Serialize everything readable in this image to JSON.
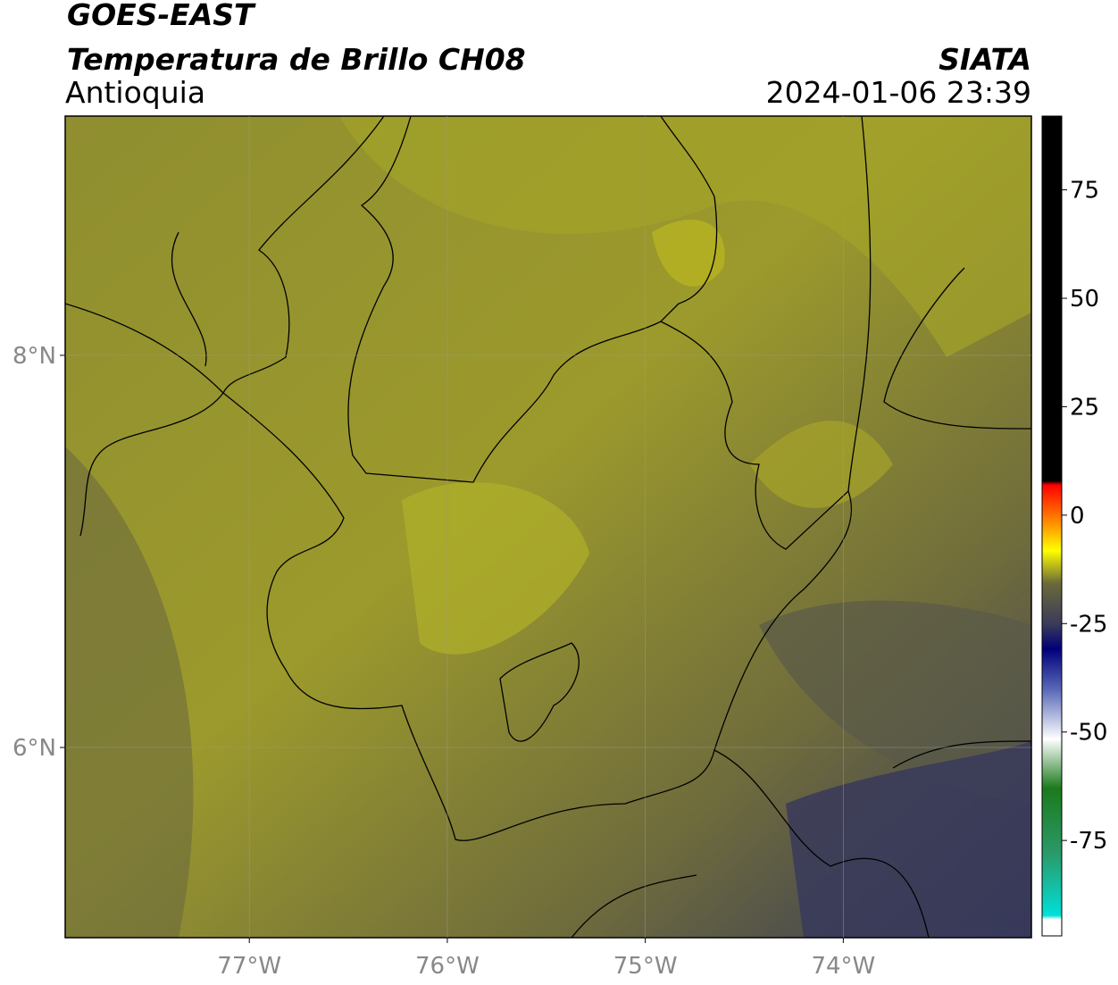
{
  "header": {
    "title": "GOES-EAST",
    "subtitle": "Temperatura de Brillo CH08",
    "region": "Antioquia",
    "source": "SIATA",
    "datetime": "2024-01-06 23:39"
  },
  "map": {
    "lon_range": [
      -77.93,
      -73.05
    ],
    "lat_range": [
      5.03,
      9.22
    ],
    "lon_ticks": [
      {
        "value": -77,
        "label": "77°W"
      },
      {
        "value": -76,
        "label": "76°W"
      },
      {
        "value": -75,
        "label": "75°W"
      },
      {
        "value": -74,
        "label": "74°W"
      }
    ],
    "lat_ticks": [
      {
        "value": 8,
        "label": "8°N"
      },
      {
        "value": 6,
        "label": "6°N"
      }
    ]
  },
  "colorbar": {
    "range": [
      -97,
      92
    ],
    "ticks": [
      75,
      50,
      25,
      0,
      -25,
      -50,
      -75
    ]
  }
}
